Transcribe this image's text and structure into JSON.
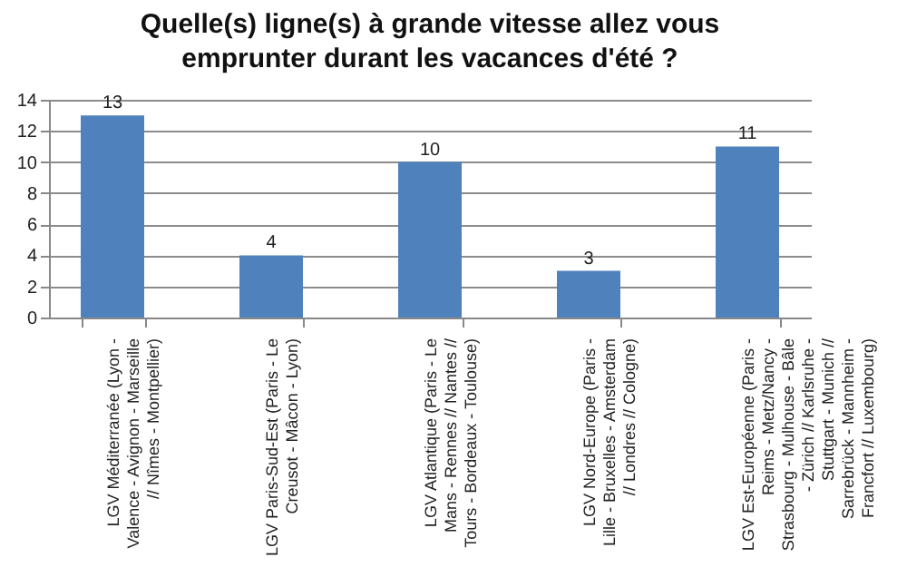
{
  "chart_data": {
    "type": "bar",
    "title": "Quelle(s) ligne(s) à grande vitesse allez vous emprunter durant les vacances d'été ?",
    "categories": [
      "LGV Méditerranée (Lyon - Valence - Avignon - Marseille // Nîmes - Montpellier)",
      "LGV Paris-Sud-Est (Paris - Le Creusot - Mâcon - Lyon)",
      "LGV Atlantique (Paris - Le Mans - Rennes // Nantes // Tours - Bordeaux - Toulouse)",
      "LGV Nord-Europe (Paris - Lille - Bruxelles - Amsterdam // Londres // Cologne)",
      "LGV Est-Européenne (Paris - Reims - Metz/Nancy - Strasbourg - Mulhouse - Bâle - Zürich // Karlsruhe - Stuttgart - Munich // Sarrebrück - Mannheim - Francfort // Luxembourg)"
    ],
    "values": [
      13,
      4,
      10,
      3,
      11
    ],
    "color": "#4f81bd",
    "ylim": [
      0,
      14
    ],
    "yticks": [
      0,
      2,
      4,
      6,
      8,
      10,
      12,
      14
    ],
    "grid": "y",
    "data_labels": true
  }
}
